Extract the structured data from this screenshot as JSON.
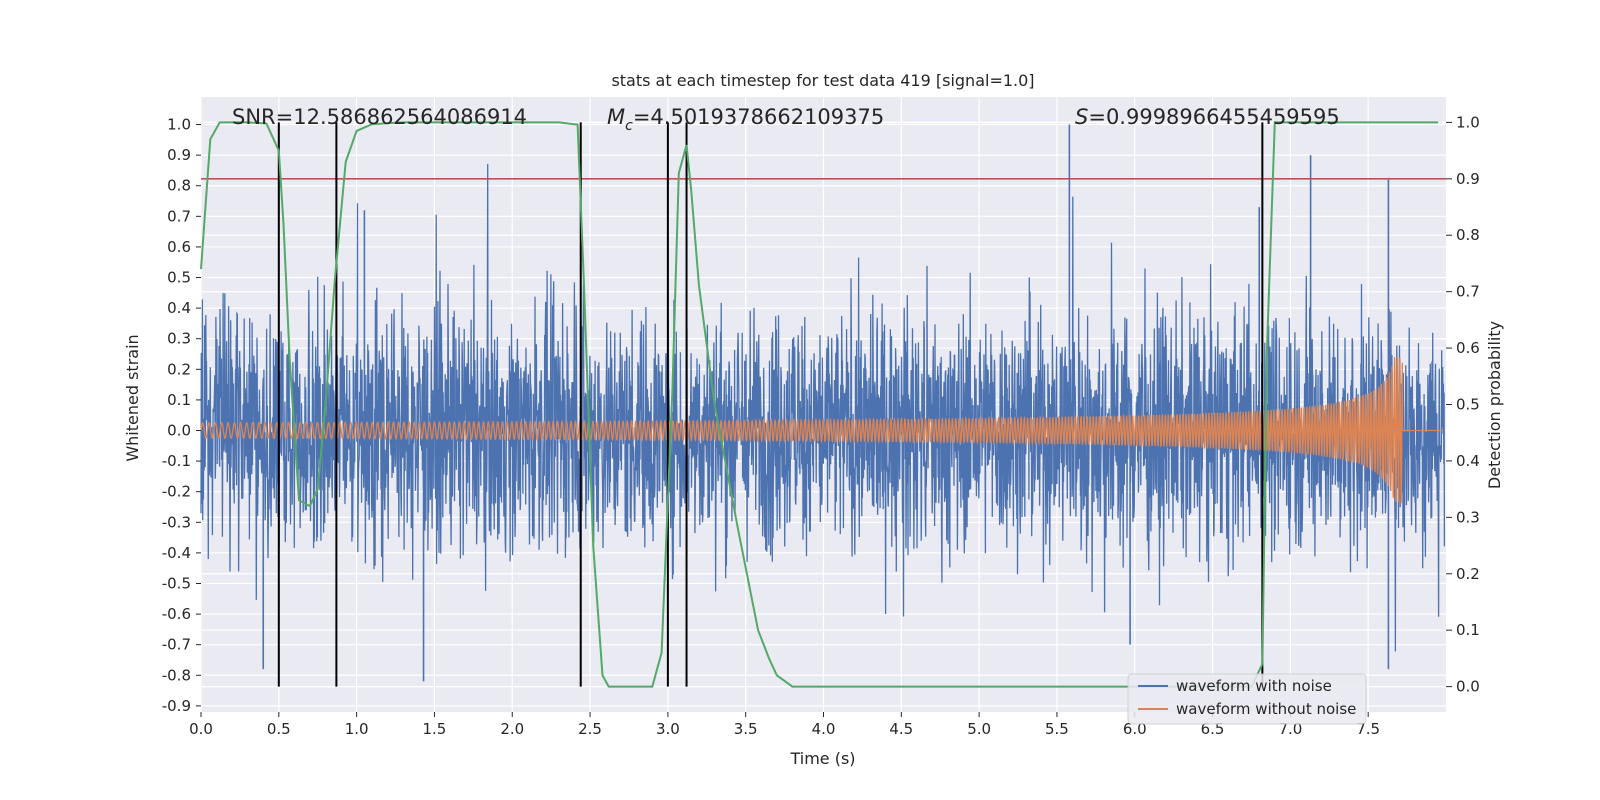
{
  "chart_data": {
    "type": "line",
    "title": "stats at each timestep for test data 419 [signal=1.0]",
    "xlabel": "Time (s)",
    "ylabel": "Whitened strain",
    "y2label": "Detection probability",
    "xlim": [
      0.0,
      8.0
    ],
    "ylim": [
      -0.92,
      1.09
    ],
    "y2lim": [
      -0.045,
      1.045
    ],
    "xticks": [
      "0.0",
      "0.5",
      "1.0",
      "1.5",
      "2.0",
      "2.5",
      "3.0",
      "3.5",
      "4.0",
      "4.5",
      "5.0",
      "5.5",
      "6.0",
      "6.5",
      "7.0",
      "7.5"
    ],
    "yticks": [
      "-0.9",
      "-0.8",
      "-0.7",
      "-0.6",
      "-0.5",
      "-0.4",
      "-0.3",
      "-0.2",
      "-0.1",
      "0.0",
      "0.1",
      "0.2",
      "0.3",
      "0.4",
      "0.5",
      "0.6",
      "0.7",
      "0.8",
      "0.9",
      "1.0"
    ],
    "y2ticks": [
      "0.0",
      "0.1",
      "0.2",
      "0.3",
      "0.4",
      "0.5",
      "0.6",
      "0.7",
      "0.8",
      "0.9",
      "1.0"
    ],
    "grid": true,
    "legend_position": "lower-right",
    "annotations": {
      "snr": "SNR=12.586862564086914",
      "mc_symbol": "M",
      "mc_sub": "c",
      "mc_value": "=4.5019378662109375",
      "s_symbol": "S",
      "s_value": "=0.9998966455459595"
    },
    "series": [
      {
        "name": "waveform with noise",
        "color": "#4c72b0",
        "kind": "noise-envelope",
        "typical_amplitude": 0.45,
        "peaks": [
          {
            "x": 5.58,
            "y": 1.0
          },
          {
            "x": 7.13,
            "y": 0.9
          },
          {
            "x": 7.63,
            "y": 0.82
          },
          {
            "x": 6.8,
            "y": 0.73
          },
          {
            "x": 1.05,
            "y": 0.72
          },
          {
            "x": 3.0,
            "y": 0.66
          },
          {
            "x": 1.43,
            "y": -0.82
          },
          {
            "x": 0.4,
            "y": -0.78
          },
          {
            "x": 7.63,
            "y": -0.78
          },
          {
            "x": 5.97,
            "y": -0.7
          }
        ]
      },
      {
        "name": "waveform without noise",
        "color": "#dd8452",
        "kind": "chirp",
        "start_amplitude": 0.025,
        "end_amplitude": 0.24,
        "merger_time": 7.72,
        "start_frequency": 24,
        "end_frequency": 60
      }
    ],
    "detection_probability": {
      "color": "#55a868",
      "axis": "right",
      "x": [
        0.0,
        0.06,
        0.12,
        0.2,
        0.3,
        0.42,
        0.5,
        0.53,
        0.57,
        0.63,
        0.7,
        0.75,
        0.8,
        0.86,
        0.93,
        1.0,
        1.1,
        1.3,
        1.6,
        2.0,
        2.3,
        2.42,
        2.46,
        2.52,
        2.58,
        2.62,
        2.8,
        2.9,
        2.96,
        3.03,
        3.07,
        3.12,
        3.15,
        3.2,
        3.3,
        3.45,
        3.58,
        3.65,
        3.7,
        3.8,
        4.5,
        5.0,
        5.5,
        6.0,
        6.5,
        6.75,
        6.82,
        6.85,
        6.9,
        7.0,
        7.5,
        7.95
      ],
      "y": [
        0.74,
        0.97,
        1.0,
        1.0,
        1.0,
        0.998,
        0.95,
        0.82,
        0.58,
        0.33,
        0.32,
        0.35,
        0.5,
        0.72,
        0.93,
        0.985,
        0.997,
        1.0,
        1.0,
        1.0,
        1.0,
        0.996,
        0.72,
        0.25,
        0.02,
        0.0,
        0.0,
        0.0,
        0.06,
        0.53,
        0.91,
        0.96,
        0.88,
        0.71,
        0.5,
        0.28,
        0.1,
        0.05,
        0.02,
        0.0,
        0.0,
        0.0,
        0.0,
        0.0,
        0.0,
        0.0,
        0.04,
        0.6,
        1.0,
        1.0,
        1.0,
        1.0
      ]
    },
    "threshold": {
      "color": "#c44e52",
      "value": 0.9,
      "axis": "right"
    },
    "event_markers": {
      "color": "#000000",
      "x": [
        0.5,
        0.87,
        2.44,
        3.0,
        3.12,
        6.82
      ],
      "y_top": 1.0,
      "y_bottom": 0.0,
      "axis": "right"
    }
  }
}
